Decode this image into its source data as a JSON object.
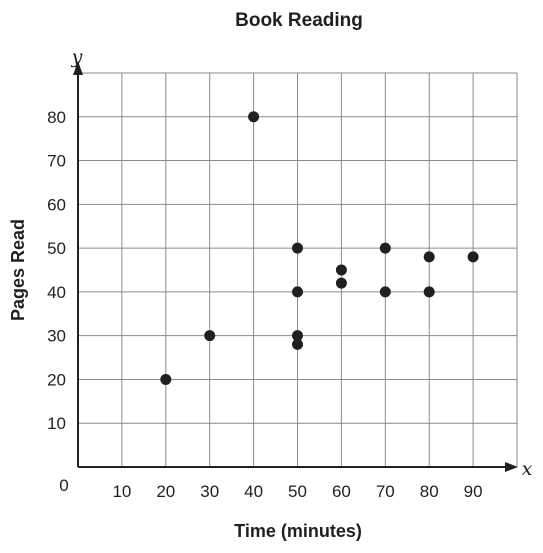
{
  "chart_data": {
    "type": "scatter",
    "title": "Book Reading",
    "xlabel": "Time (minutes)",
    "ylabel": "Pages Read",
    "x_var": "x",
    "y_var": "y",
    "origin_label": "0",
    "xlim": [
      0,
      100
    ],
    "ylim": [
      0,
      90
    ],
    "x_ticks": [
      10,
      20,
      30,
      40,
      50,
      60,
      70,
      80,
      90
    ],
    "y_ticks": [
      10,
      20,
      30,
      40,
      50,
      60,
      70,
      80
    ],
    "grid": true,
    "points": [
      {
        "x": 20,
        "y": 20
      },
      {
        "x": 30,
        "y": 30
      },
      {
        "x": 40,
        "y": 80
      },
      {
        "x": 50,
        "y": 50
      },
      {
        "x": 50,
        "y": 40
      },
      {
        "x": 50,
        "y": 30
      },
      {
        "x": 50,
        "y": 28
      },
      {
        "x": 60,
        "y": 45
      },
      {
        "x": 60,
        "y": 42
      },
      {
        "x": 70,
        "y": 50
      },
      {
        "x": 70,
        "y": 40
      },
      {
        "x": 80,
        "y": 48
      },
      {
        "x": 80,
        "y": 40
      },
      {
        "x": 90,
        "y": 48
      }
    ]
  }
}
